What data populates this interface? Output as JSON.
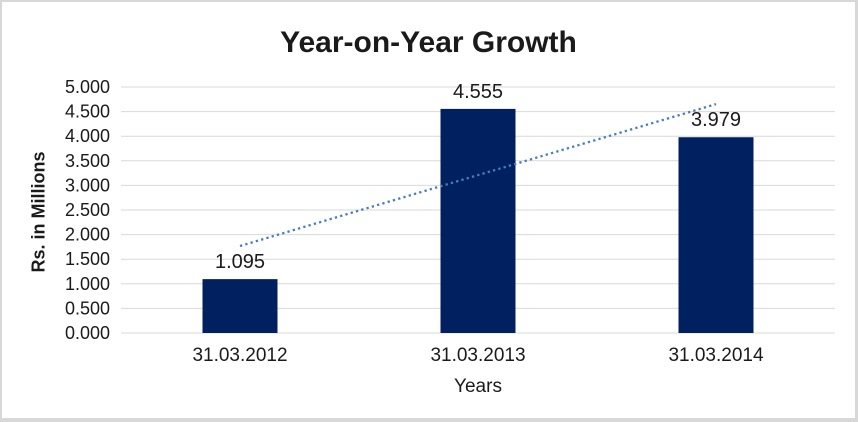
{
  "chart_data": {
    "type": "bar",
    "title": "Year-on-Year Growth",
    "xlabel": "Years",
    "ylabel": "Rs. in Millions",
    "categories": [
      "31.03.2012",
      "31.03.2013",
      "31.03.2014"
    ],
    "values": [
      1.095,
      4.555,
      3.979
    ],
    "data_labels": [
      "1.095",
      "4.555",
      "3.979"
    ],
    "ylim": [
      0,
      5
    ],
    "ytick_step": 0.5,
    "ytick_labels": [
      "0.000",
      "0.500",
      "1.000",
      "1.500",
      "2.000",
      "2.500",
      "3.000",
      "3.500",
      "4.000",
      "4.500",
      "5.000"
    ],
    "grid": true,
    "legend": "none",
    "bar_color": "#002060",
    "gridline_color": "#d9d9d9",
    "text_color": "#1a1a1a",
    "trendline": {
      "present": true,
      "fit": "linear",
      "style": "dotted",
      "color": "#4a7ebb"
    }
  }
}
